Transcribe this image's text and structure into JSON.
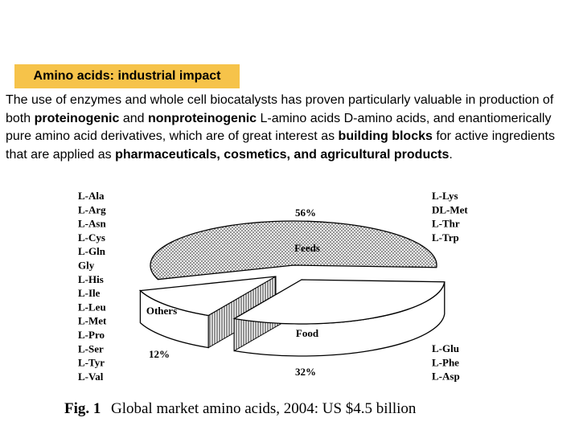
{
  "slide": {
    "title": "Amino acids: industrial impact",
    "paragraph": [
      {
        "text": "The use of enzymes and whole cell biocatalysts has proven particularly valuable in production of both ",
        "bold": false
      },
      {
        "text": "proteinogenic",
        "bold": true
      },
      {
        "text": " and ",
        "bold": false
      },
      {
        "text": "nonproteinogenic",
        "bold": true
      },
      {
        "text": " L-amino acids  D-amino acids, and enantiomerically pure amino acid derivatives, which are of great interest as ",
        "bold": false
      },
      {
        "text": "building blocks",
        "bold": true
      },
      {
        "text": " for active ingredients that are applied as ",
        "bold": false
      },
      {
        "text": "pharmaceuticals, cosmetics, and agricultural products",
        "bold": true
      },
      {
        "text": ".",
        "bold": false
      }
    ]
  },
  "chart_data": {
    "type": "pie",
    "title": "Global market amino acids, 2004: US $4.5 billion",
    "figure_label": "Fig. 1",
    "slices": [
      {
        "name": "Feeds",
        "value": 56,
        "label": "56%",
        "fill": "#c8c8c8",
        "amino_acids": [
          "L-Lys",
          "DL-Met",
          "L-Thr",
          "L-Trp"
        ]
      },
      {
        "name": "Food",
        "value": 32,
        "label": "32%",
        "fill": "#ffffff",
        "amino_acids": [
          "L-Glu",
          "L-Phe",
          "L-Asp"
        ]
      },
      {
        "name": "Others",
        "value": 12,
        "label": "12%",
        "fill": "#e4e4e4",
        "amino_acids": [
          "L-Ala",
          "L-Arg",
          "L-Asn",
          "L-Cys",
          "L-Gln",
          "Gly",
          "L-His",
          "L-Ile",
          "L-Leu",
          "L-Met",
          "L-Pro",
          "L-Ser",
          "L-Tyr",
          "L-Val"
        ]
      }
    ]
  }
}
